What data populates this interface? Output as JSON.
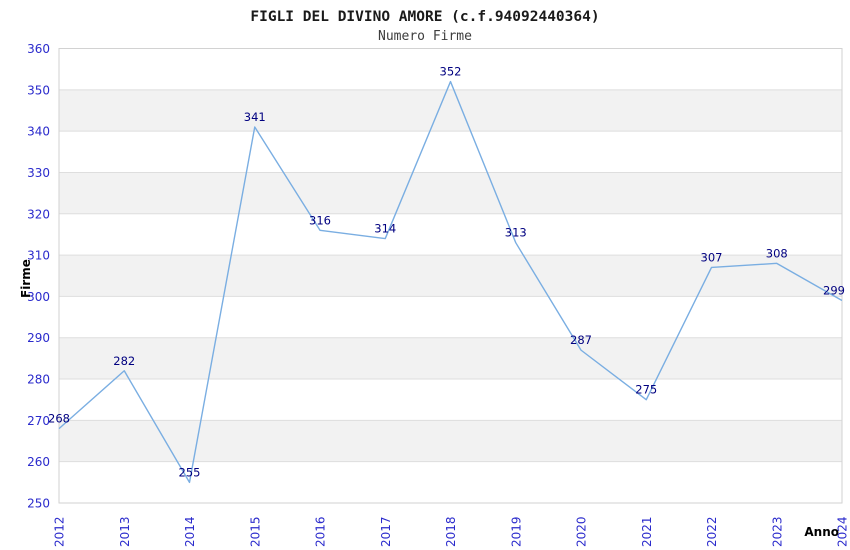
{
  "chart_data": {
    "type": "line",
    "title": "FIGLI DEL DIVINO AMORE (c.f.94092440364)",
    "subtitle": "Numero Firme",
    "xlabel": "Anno",
    "ylabel": "Firme",
    "categories": [
      "2012",
      "2013",
      "2014",
      "2015",
      "2016",
      "2017",
      "2018",
      "2019",
      "2020",
      "2021",
      "2022",
      "2023",
      "2024"
    ],
    "values": [
      268,
      282,
      255,
      341,
      316,
      314,
      352,
      313,
      287,
      275,
      307,
      308,
      299
    ],
    "ylim": [
      250,
      360
    ],
    "ytick_step": 10,
    "ytick_labels": [
      "250",
      "260",
      "270",
      "280",
      "290",
      "300",
      "310",
      "320",
      "330",
      "340",
      "350",
      "360"
    ],
    "grid": "horizontal-alternating-bands",
    "legend": "none",
    "x_tick_rotation_deg": -90,
    "value_labels_shown": true,
    "colors": {
      "line": "#7AAEE2",
      "tick_label": "#2B2BCC",
      "value_label": "#000080",
      "band_gray": "#F2F2F2",
      "band_white": "#FFFFFF",
      "gridline": "#DEDEDE",
      "border": "#D2D2D2",
      "title": "#1A1A1A",
      "subtitle": "#3D3D3D",
      "axis_caption": "#000000",
      "background": "#FFFFFF"
    }
  }
}
